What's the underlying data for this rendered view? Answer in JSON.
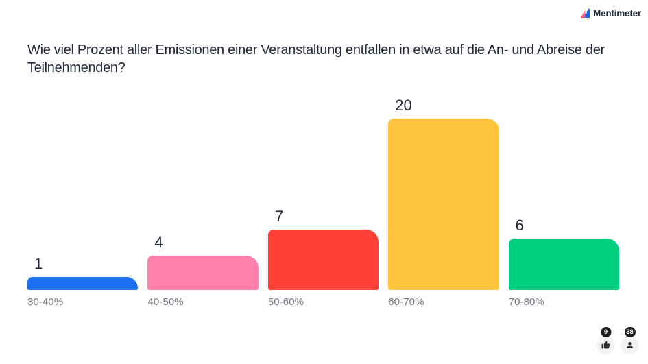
{
  "brand": {
    "name": "Mentimeter"
  },
  "question": {
    "text": "Wie viel Prozent aller Emissionen einer Veranstaltung entfallen in etwa auf die An- und Abreise der Teilnehmenden?"
  },
  "chart_data": {
    "type": "bar",
    "title": "Wie viel Prozent aller Emissionen einer Veranstaltung entfallen in etwa auf die An- und Abreise der Teilnehmenden?",
    "categories": [
      "30-40%",
      "40-50%",
      "50-60%",
      "60-70%",
      "70-80%"
    ],
    "values": [
      1,
      4,
      7,
      20,
      6
    ],
    "bar_colors": [
      "#1D6FF2",
      "#FF80AC",
      "#FF4038",
      "#FFC43D",
      "#00CE81"
    ],
    "value_labels": "above bar, left aligned",
    "xlabel": "",
    "ylabel": "",
    "ylim": [
      0,
      20
    ],
    "grid": false,
    "legend": false
  },
  "footer": {
    "upvotes": "9",
    "participants": "38"
  },
  "colors": {
    "text_primary": "#22283A",
    "text_secondary": "#6F7480",
    "reaction_button_bg": "#F3F3F4",
    "badge_bg": "#1F1F21",
    "badge_text": "#FFFFFF",
    "brand_blue": "#1B64F0",
    "brand_pink": "#FF5A77"
  }
}
